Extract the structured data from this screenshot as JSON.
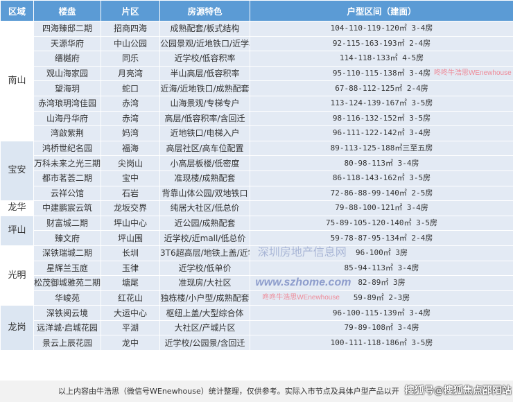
{
  "header": [
    "区域",
    "楼盘",
    "片区",
    "房源特色",
    "户型区间（建面）"
  ],
  "groups": [
    {
      "region": "南山",
      "rows": [
        [
          "四海臻邸二期",
          "招商四海",
          "成熟配套/板式结构",
          "104-110-119-120㎡ 3-4房"
        ],
        [
          "天源华府",
          "中山公园",
          "公园景观/近地铁口/近学校",
          "92-115-163-193㎡ 2-4房"
        ],
        [
          "缙樾府",
          "同乐",
          "近学校/低容积率",
          "114-118-133㎡ 4-5房"
        ],
        [
          "观山海家园",
          "月亮湾",
          "半山高层/低容积率",
          "95-110-115-138㎡ 3-4房"
        ],
        [
          "望海玥",
          "蛇口",
          "近海/近地铁口/成熟配套",
          "67-88-112-125㎡ 2-4房"
        ],
        [
          "赤湾琅玥湾佳园",
          "赤湾",
          "山海景观/专梯专户",
          "113-124-139-167㎡ 3-5房"
        ],
        [
          "山海丹华府",
          "赤湾",
          "高层/低容积率/含回迁",
          "98-116-132-152㎡ 3-5房"
        ],
        [
          "湾啟紫荆",
          "妈湾",
          "近地铁口/电梯入户",
          "96-111-122-142㎡ 3-4房"
        ]
      ]
    },
    {
      "region": "宝安",
      "rows": [
        [
          "鸿桥世纪名园",
          "福海",
          "高层社区/高车位配置",
          "89-113-125-188㎡三至五房"
        ],
        [
          "万科未来之光三期",
          "尖岗山",
          "小高层板楼/低密度",
          "80-98-113㎡ 3-4房"
        ],
        [
          "都市茗荟二期",
          "宝中",
          "准现楼/成熟配套",
          "86-118-143-162㎡ 3-5房"
        ],
        [
          "云祥公馆",
          "石岩",
          "背靠山体公园/双地铁口",
          "72-86-88-99-140㎡ 2-5房"
        ]
      ]
    },
    {
      "region": "龙华",
      "rows": [
        [
          "中建鹏宸云筑",
          "龙坂交界",
          "纯居大社区/低总价",
          "79-88-100-121㎡ 3-4房"
        ]
      ]
    },
    {
      "region": "坪山",
      "rows": [
        [
          "财富城二期",
          "坪山中心",
          "近公园/成熟配套",
          "75-89-105-120-140㎡ 3-5房"
        ],
        [
          "臻文府",
          "坪山围",
          "近学校/近mall/低总价",
          "59-78-87-95-134㎡ 2-4房"
        ]
      ]
    },
    {
      "region": "光明",
      "rows": [
        [
          "深铁瑞城二期",
          "长圳",
          "3T6超高层/地铁上盖/近学校",
          "96-100㎡ 3房"
        ],
        [
          "星辉兰玉庭",
          "玉律",
          "近学校/低单价",
          "85-94-113㎡ 3-4房"
        ],
        [
          "松茂御城雅苑二期",
          "塘尾",
          "准现房/大社区",
          "82-89㎡ 3房"
        ],
        [
          "华峻苑",
          "红花山",
          "独栋楼/小户型/成熟配套",
          "59-89㎡ 2-3房"
        ]
      ]
    },
    {
      "region": "龙岗",
      "rows": [
        [
          "深铁阅云境",
          "大运中心",
          "枢纽上盖/大型综合体",
          "96-100-115-139㎡ 3-4房"
        ],
        [
          "远洋城·启城花园",
          "平湖",
          "大社区/产城片区",
          "79-89-108㎡ 3-4房"
        ],
        [
          "景云上辰花园",
          "龙中",
          "近学校/公园景/含回迁",
          "100-111-118-186㎡ 3-5房"
        ]
      ]
    }
  ],
  "footer": {
    "note": "以上内容由牛浩思（微信号WEnewhouse）统计整理，仅供参考。实际入市节点及具体户型产品以开",
    "stamp": "搜狐号@搜狐焦点邵阳站"
  },
  "watermarks": {
    "author": "咚咚牛浩思WEnewhouse",
    "site_name": "深圳房地产信息网",
    "site_url": "www.szhome.com"
  },
  "colors": {
    "header_bg": "#5b9bd5",
    "cell_bg": "#e3eaf4",
    "region_alt_bg": "#dce6f2"
  }
}
